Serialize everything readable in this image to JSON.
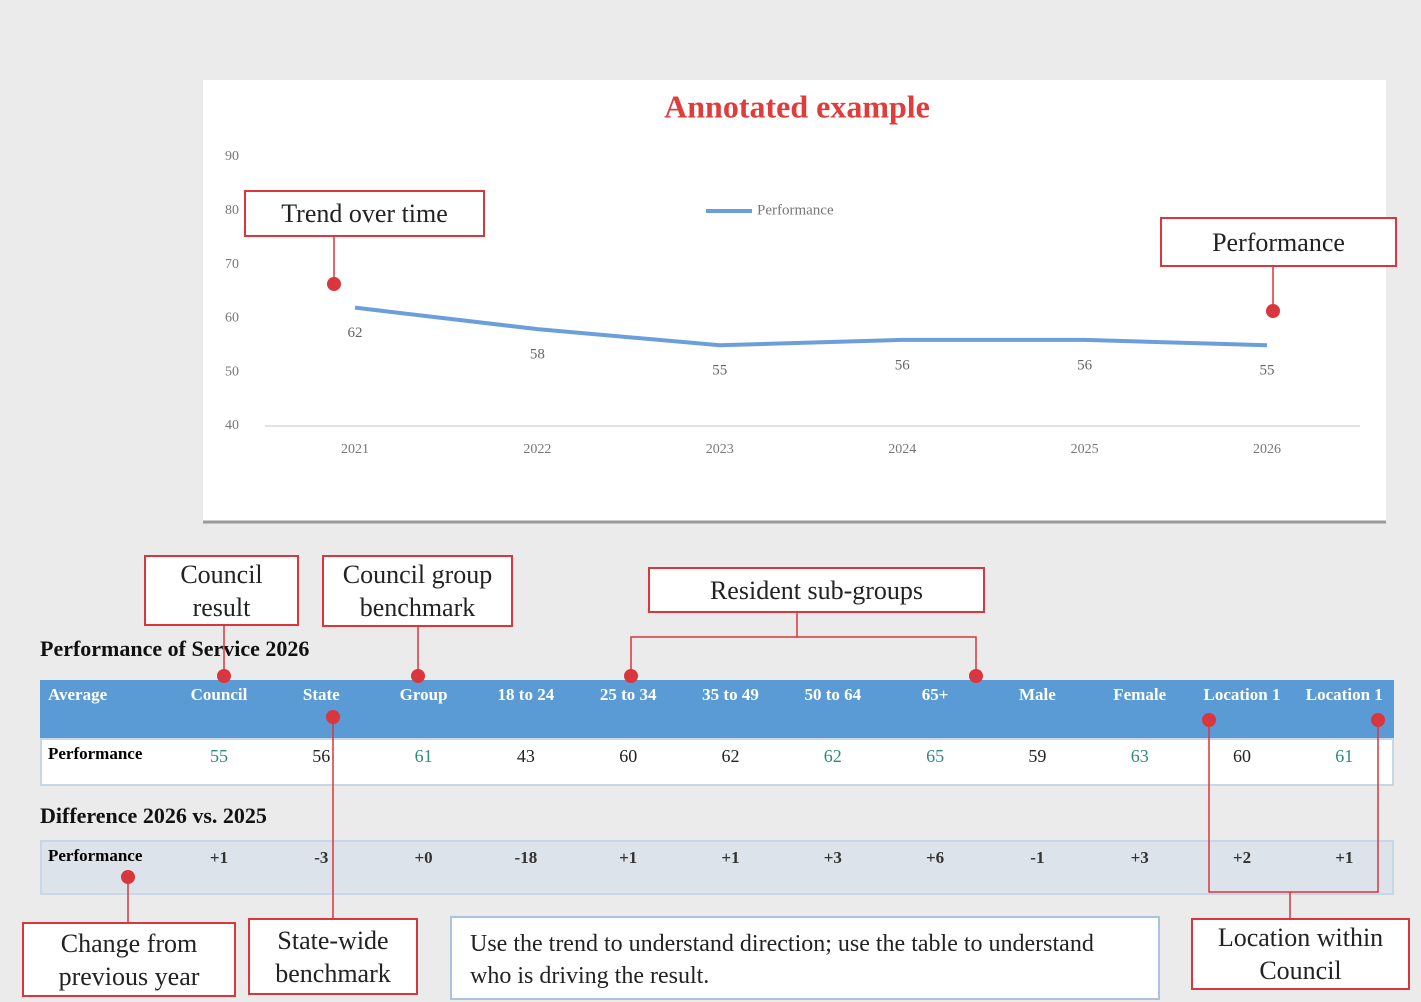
{
  "chart_data": {
    "type": "line",
    "title": "Annotated example",
    "categories": [
      "2021",
      "2022",
      "2023",
      "2024",
      "2025",
      "2026"
    ],
    "series": [
      {
        "name": "Performance",
        "color": "#6a9fdb",
        "values": [
          62,
          58,
          55,
          56,
          56,
          55
        ]
      }
    ],
    "ylim": [
      40,
      90
    ],
    "yticks": [
      40,
      50,
      60,
      70,
      80,
      90
    ],
    "legend": "top",
    "data_labels": true
  },
  "tables": [
    {
      "title": "Performance of Service 2026",
      "columns": [
        "Average",
        "Council",
        "State",
        "Group",
        "18 to 24",
        "25 to 34",
        "35 to 49",
        "50 to 64",
        "65+",
        "Male",
        "Female",
        "Location 1",
        "Location 1"
      ],
      "rows": [
        {
          "label": "Performance",
          "values": [
            55,
            56,
            61,
            43,
            60,
            62,
            62,
            65,
            59,
            63,
            60,
            61
          ],
          "colors": [
            "#2e8b7a",
            "#222222",
            "#2e8b7a",
            "#222222",
            "#222222",
            "#222222",
            "#2e8b7a",
            "#2e8b7a",
            "#222222",
            "#2e8b7a",
            "#222222",
            "#2e8b7a"
          ]
        }
      ]
    },
    {
      "title": "Difference 2026 vs. 2025",
      "rows": [
        {
          "label": "Performance",
          "values": [
            "+1",
            "-3",
            "+0",
            "-18",
            "+1",
            "+1",
            "+3",
            "+6",
            "-1",
            "+3",
            "+2",
            "+1"
          ]
        }
      ]
    }
  ],
  "annotations": [
    "Trend over time",
    "Performance",
    "Council result",
    "Council group benchmark",
    "Resident sub-groups",
    "Change from previous year",
    "State-wide benchmark",
    "Location within Council"
  ],
  "note": "Use the trend to understand direction; use the table to understand who is driving the result."
}
